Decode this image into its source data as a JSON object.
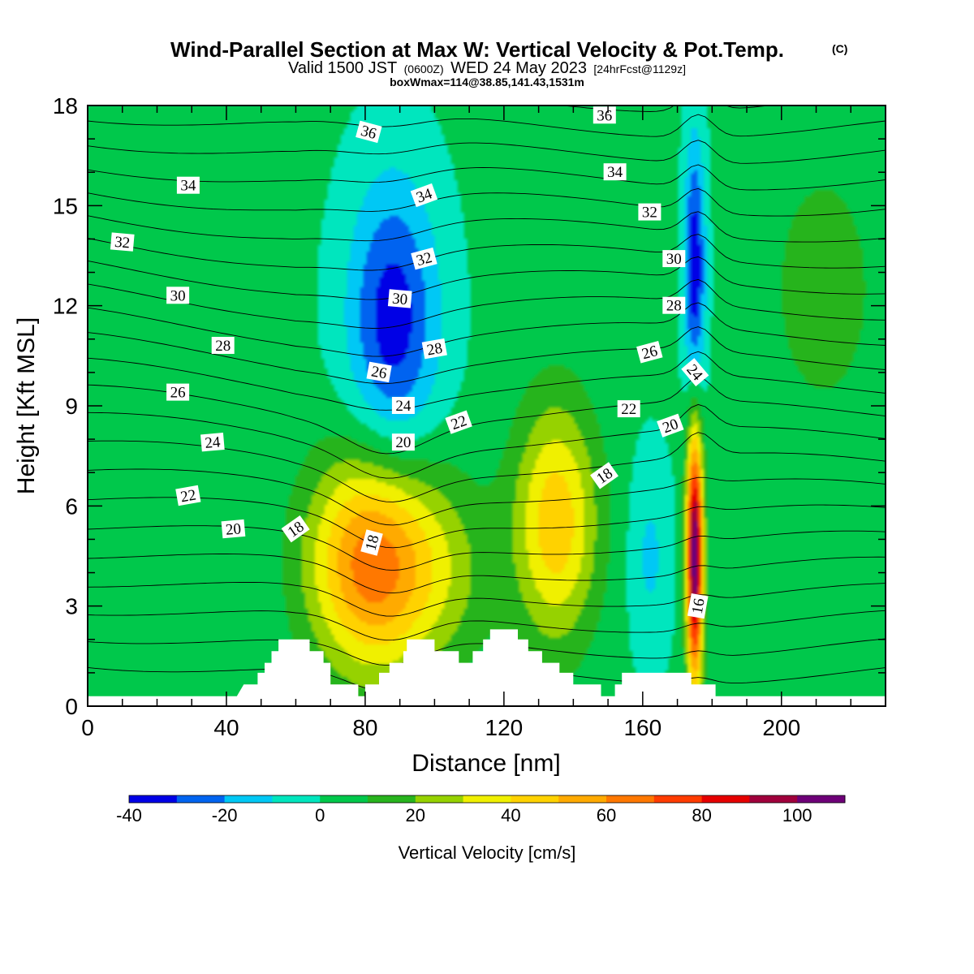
{
  "chart_data": {
    "type": "contour",
    "title": "Wind-Parallel Section at Max W: Vertical Velocity & Pot.Temp.",
    "title_suffix": "(C)",
    "subtitle_parts": [
      "Valid 1500 JST",
      "(0600Z)",
      "WED 24 May 2023",
      "[24hrFcst@1129z]"
    ],
    "subtitle2": "boxWmax=114@38.85,141.43,1531m",
    "xlabel": "Distance [nm]",
    "ylabel": "Height [Kft MSL]",
    "xlim": [
      0,
      230
    ],
    "ylim": [
      0,
      18
    ],
    "xticks": [
      0,
      40,
      80,
      120,
      160,
      200
    ],
    "yticks": [
      0,
      3,
      6,
      9,
      12,
      15,
      18
    ],
    "colorbar": {
      "label": "Vertical Velocity [cm/s]",
      "range": [
        -40,
        110
      ],
      "tick_values": [
        -40,
        -20,
        0,
        20,
        40,
        60,
        80,
        100
      ],
      "tick_labels": [
        "-40",
        "-20",
        "0",
        "20",
        "40",
        "60",
        "80",
        "100"
      ],
      "colors": [
        "#0000e6",
        "#0064f0",
        "#00c8f5",
        "#00e6be",
        "#00c84b",
        "#28b41e",
        "#96d200",
        "#f0f000",
        "#ffd200",
        "#ffaa00",
        "#ff7800",
        "#ff3c00",
        "#e60000",
        "#a0003c",
        "#6e0078"
      ]
    },
    "w_features": [
      {
        "kind": "updraft",
        "x": 82,
        "z": 4.3,
        "wx": 18,
        "wz": 3.3,
        "peak": 65
      },
      {
        "kind": "updraft",
        "x": 135,
        "z": 5.5,
        "wx": 12,
        "wz": 3.6,
        "peak": 45
      },
      {
        "kind": "updraft",
        "x": 175,
        "z": 4.5,
        "wx": 2.4,
        "wz": 3.9,
        "peak": 108
      },
      {
        "kind": "updraft",
        "x": 104,
        "z": 4.0,
        "wx": 15,
        "wz": 3.0,
        "peak": 15
      },
      {
        "kind": "updraft",
        "x": 212,
        "z": 12.5,
        "wx": 16,
        "wz": 4.0,
        "peak": 14
      },
      {
        "kind": "downdraft",
        "x": 88,
        "z": 11.5,
        "wx": 13,
        "wz": 4.3,
        "peak": -38
      },
      {
        "kind": "downdraft",
        "x": 175,
        "z": 13.0,
        "wx": 3,
        "wz": 4.0,
        "peak": -40
      },
      {
        "kind": "downdraft",
        "x": 162,
        "z": 4.5,
        "wx": 6,
        "wz": 3.0,
        "peak": -14
      }
    ],
    "theta_labels": [
      {
        "text": "36",
        "x": 81,
        "z": 17.2,
        "angle": 15
      },
      {
        "text": "34",
        "x": 29,
        "z": 15.6,
        "angle": 0
      },
      {
        "text": "34",
        "x": 97,
        "z": 15.3,
        "angle": -20
      },
      {
        "text": "32",
        "x": 10,
        "z": 13.9,
        "angle": 5
      },
      {
        "text": "32",
        "x": 97,
        "z": 13.4,
        "angle": -15
      },
      {
        "text": "30",
        "x": 26,
        "z": 12.3,
        "angle": 0
      },
      {
        "text": "30",
        "x": 90,
        "z": 12.2,
        "angle": 5
      },
      {
        "text": "28",
        "x": 39,
        "z": 10.8,
        "angle": 0
      },
      {
        "text": "28",
        "x": 100,
        "z": 10.7,
        "angle": -10
      },
      {
        "text": "26",
        "x": 26,
        "z": 9.4,
        "angle": 0
      },
      {
        "text": "26",
        "x": 84,
        "z": 10.0,
        "angle": 10
      },
      {
        "text": "24",
        "x": 36,
        "z": 7.9,
        "angle": -5
      },
      {
        "text": "24",
        "x": 91,
        "z": 9.0,
        "angle": 0
      },
      {
        "text": "22",
        "x": 29,
        "z": 6.3,
        "angle": -10
      },
      {
        "text": "22",
        "x": 107,
        "z": 8.5,
        "angle": -20
      },
      {
        "text": "20",
        "x": 42,
        "z": 5.3,
        "angle": -5
      },
      {
        "text": "20",
        "x": 91,
        "z": 7.9,
        "angle": 0
      },
      {
        "text": "18",
        "x": 60,
        "z": 5.3,
        "angle": -35
      },
      {
        "text": "18",
        "x": 82,
        "z": 4.9,
        "angle": -75
      },
      {
        "text": "18",
        "x": 149,
        "z": 6.9,
        "angle": -35
      },
      {
        "text": "36",
        "x": 149,
        "z": 17.7,
        "angle": 0
      },
      {
        "text": "34",
        "x": 152,
        "z": 16.0,
        "angle": 0
      },
      {
        "text": "32",
        "x": 162,
        "z": 14.8,
        "angle": 0
      },
      {
        "text": "30",
        "x": 169,
        "z": 13.4,
        "angle": 0
      },
      {
        "text": "28",
        "x": 169,
        "z": 12.0,
        "angle": 0
      },
      {
        "text": "26",
        "x": 162,
        "z": 10.6,
        "angle": -15
      },
      {
        "text": "24",
        "x": 175,
        "z": 10.0,
        "angle": 50
      },
      {
        "text": "22",
        "x": 156,
        "z": 8.9,
        "angle": 0
      },
      {
        "text": "20",
        "x": 168,
        "z": 8.4,
        "angle": -20
      },
      {
        "text": "16",
        "x": 176,
        "z": 3.0,
        "angle": -80
      }
    ],
    "terrain": [
      [
        0,
        0.3
      ],
      [
        4,
        0.3
      ],
      [
        43,
        0.3
      ],
      [
        45,
        0.65
      ],
      [
        49,
        0.65
      ],
      [
        49,
        1.0
      ],
      [
        51,
        1.0
      ],
      [
        51,
        1.3
      ],
      [
        53,
        1.3
      ],
      [
        53,
        1.65
      ],
      [
        55,
        1.65
      ],
      [
        55,
        2.0
      ],
      [
        64,
        2.0
      ],
      [
        64,
        1.65
      ],
      [
        68,
        1.65
      ],
      [
        68,
        1.3
      ],
      [
        70,
        1.3
      ],
      [
        70,
        0.65
      ],
      [
        78,
        0.65
      ],
      [
        78,
        0.3
      ],
      [
        80,
        0.3
      ],
      [
        80,
        0.65
      ],
      [
        84,
        0.65
      ],
      [
        84,
        1.0
      ],
      [
        87,
        1.0
      ],
      [
        87,
        1.3
      ],
      [
        91,
        1.3
      ],
      [
        91,
        1.65
      ],
      [
        92,
        1.65
      ],
      [
        92,
        2.0
      ],
      [
        100,
        2.0
      ],
      [
        100,
        1.65
      ],
      [
        107,
        1.65
      ],
      [
        107,
        1.3
      ],
      [
        111,
        1.3
      ],
      [
        111,
        1.65
      ],
      [
        114,
        1.65
      ],
      [
        114,
        2.0
      ],
      [
        116,
        2.0
      ],
      [
        116,
        2.3
      ],
      [
        124,
        2.3
      ],
      [
        124,
        2.0
      ],
      [
        127,
        2.0
      ],
      [
        127,
        1.65
      ],
      [
        131,
        1.65
      ],
      [
        131,
        1.3
      ],
      [
        136,
        1.3
      ],
      [
        136,
        1.0
      ],
      [
        140,
        1.0
      ],
      [
        140,
        0.65
      ],
      [
        148,
        0.65
      ],
      [
        148,
        0.3
      ],
      [
        152,
        0.3
      ],
      [
        152,
        0.65
      ],
      [
        154,
        0.65
      ],
      [
        154,
        1.0
      ],
      [
        174,
        1.0
      ],
      [
        174,
        0.65
      ],
      [
        181,
        0.65
      ],
      [
        181,
        0.3
      ],
      [
        230,
        0.3
      ]
    ]
  }
}
